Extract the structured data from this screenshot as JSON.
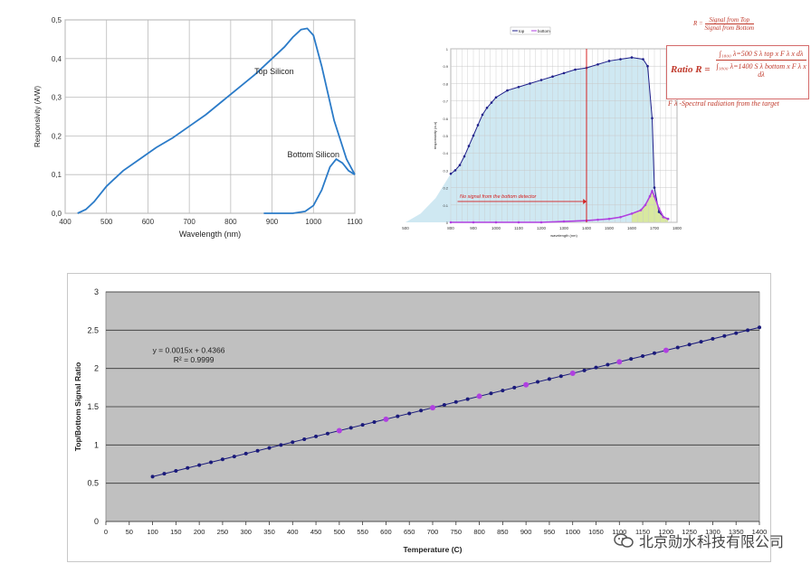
{
  "chart_data": [
    {
      "type": "line",
      "xlabel": "Wavelength (nm)",
      "ylabel": "Responsivity (A/W)",
      "xlim": [
        400,
        1100
      ],
      "ylim": [
        0,
        0.5
      ],
      "xticks": [
        "400",
        "500",
        "600",
        "700",
        "800",
        "900",
        "1000",
        "1100"
      ],
      "yticks": [
        "0,0",
        "0,1",
        "0,2",
        "0,3",
        "0,4",
        "0,5"
      ],
      "grid": true,
      "series": [
        {
          "name": "Top Silicon",
          "x": [
            430,
            450,
            470,
            500,
            540,
            580,
            620,
            660,
            700,
            740,
            780,
            820,
            860,
            900,
            930,
            950,
            970,
            985,
            1000,
            1020,
            1050,
            1080,
            1100
          ],
          "y": [
            0.0,
            0.01,
            0.03,
            0.07,
            0.11,
            0.14,
            0.17,
            0.195,
            0.225,
            0.255,
            0.29,
            0.325,
            0.36,
            0.4,
            0.43,
            0.455,
            0.475,
            0.478,
            0.46,
            0.38,
            0.24,
            0.14,
            0.1
          ]
        },
        {
          "name": "Bottom Silicon",
          "x": [
            880,
            920,
            950,
            980,
            1000,
            1020,
            1040,
            1055,
            1070,
            1085,
            1100
          ],
          "y": [
            0.0,
            0.0,
            0.0,
            0.005,
            0.02,
            0.06,
            0.12,
            0.14,
            0.13,
            0.11,
            0.1
          ]
        }
      ]
    },
    {
      "type": "line",
      "xlabel": "wavelength (nm)",
      "ylabel": "responsivity (a.u)",
      "xlim": [
        500,
        1800
      ],
      "ylim": [
        0,
        1
      ],
      "xticks": [
        "500",
        "800",
        "900",
        "1000",
        "1100",
        "1200",
        "1300",
        "1400",
        "1500",
        "1600",
        "1700",
        "1800"
      ],
      "yticks": [
        "0",
        "0.1",
        "0.2",
        "0.3",
        "0.4",
        "0.5",
        "0.6",
        "0.7",
        "0.8",
        "0.9",
        "1"
      ],
      "legend": [
        "top",
        "bottom"
      ],
      "legend_position": "top",
      "annotation": "No signal from the bottom detector",
      "vline_x": 1400,
      "series": [
        {
          "name": "top",
          "x": [
            800,
            820,
            840,
            860,
            880,
            900,
            920,
            940,
            960,
            980,
            1000,
            1050,
            1100,
            1150,
            1200,
            1250,
            1300,
            1350,
            1400,
            1450,
            1500,
            1550,
            1600,
            1650,
            1670,
            1690,
            1700,
            1720,
            1740,
            1760
          ],
          "y": [
            0.28,
            0.3,
            0.33,
            0.38,
            0.44,
            0.5,
            0.56,
            0.62,
            0.66,
            0.69,
            0.72,
            0.76,
            0.78,
            0.8,
            0.82,
            0.84,
            0.86,
            0.88,
            0.89,
            0.91,
            0.93,
            0.94,
            0.95,
            0.94,
            0.9,
            0.6,
            0.2,
            0.06,
            0.03,
            0.02
          ]
        },
        {
          "name": "bottom",
          "x": [
            800,
            900,
            1000,
            1100,
            1200,
            1300,
            1400,
            1450,
            1500,
            1550,
            1600,
            1640,
            1660,
            1680,
            1690,
            1700,
            1720,
            1740,
            1760
          ],
          "y": [
            0.0,
            0.0,
            0.0,
            0.0,
            0.0,
            0.005,
            0.01,
            0.015,
            0.02,
            0.03,
            0.05,
            0.07,
            0.1,
            0.15,
            0.18,
            0.15,
            0.08,
            0.03,
            0.02
          ]
        }
      ]
    },
    {
      "type": "scatter",
      "xlabel": "Temperature  (C)",
      "ylabel": "Top/Bottom  Signal  Ratio",
      "xlim": [
        0,
        1400
      ],
      "ylim": [
        0,
        3
      ],
      "xticks": [
        "0",
        "50",
        "100",
        "150",
        "200",
        "250",
        "300",
        "350",
        "400",
        "450",
        "500",
        "550",
        "600",
        "650",
        "700",
        "750",
        "800",
        "850",
        "900",
        "950",
        "1000",
        "1050",
        "1100",
        "1150",
        "1200",
        "1250",
        "1300",
        "1350",
        "1400"
      ],
      "yticks": [
        "0",
        "0.5",
        "1",
        "1.5",
        "2",
        "2.5",
        "3"
      ],
      "grid": true,
      "equation": "y = 0.0015x  + 0.4366",
      "r_squared": "R² = 0.9999",
      "fit": {
        "slope": 0.0015,
        "intercept": 0.4366
      },
      "x_start": 100,
      "x_end": 1400,
      "x_step": 25,
      "highlight_x": [
        500,
        600,
        700,
        800,
        900,
        1000,
        1100,
        1200
      ]
    }
  ],
  "labels": {
    "ratio_title": "Ratio R =",
    "ratio_numerator": "∫₁₈₀₀ λ=500  S λ top x F λ x dλ",
    "ratio_denominator": "∫₁₈₀₀ λ=1400  S λ bottom x F λ x dλ",
    "r_def_prefix": "R =",
    "r_def_top": "Signal from Top",
    "r_def_bottom": "Signal from Bottom",
    "f_def": "F λ  -Spectral radiation from the target",
    "watermark": "北京勋水科技有限公司"
  },
  "colors": {
    "curve_blue": "#2b7bc8",
    "panel_gray": "#c0c0c0",
    "top_series": "#1f1f8a",
    "bottom_series": "#b040e0",
    "fill_blue": "#cfe8f2",
    "fill_green": "#d8e8a0",
    "annotation_red": "#d42020",
    "fit_line": "#1a1a7a"
  }
}
